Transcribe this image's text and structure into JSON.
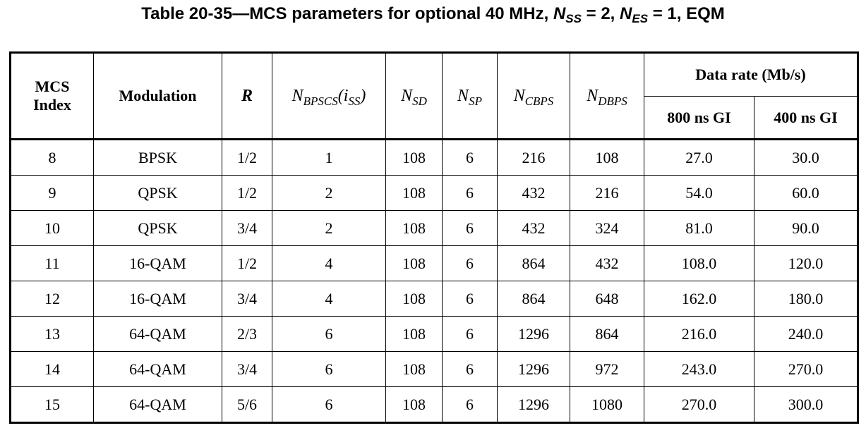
{
  "caption": {
    "prefix": "Table 20-35—MCS parameters for optional 40 MHz, ",
    "nss_n": "N",
    "nss_sub": "SS",
    "nss_val": " = 2, ",
    "nes_n": "N",
    "nes_sub": "ES",
    "nes_val": " = 1, EQM"
  },
  "headers": {
    "mcs_index": "MCS Index",
    "modulation": "Modulation",
    "r": "R",
    "nbpscs_n": "N",
    "nbpscs_sub": "BPSCS",
    "nbpscs_paren_open": "(i",
    "nbpscs_iss_sub": "SS",
    "nbpscs_paren_close": ")",
    "nsd_n": "N",
    "nsd_sub": "SD",
    "nsp_n": "N",
    "nsp_sub": "SP",
    "ncbps_n": "N",
    "ncbps_sub": "CBPS",
    "ndbps_n": "N",
    "ndbps_sub": "DBPS",
    "data_rate": "Data rate (Mb/s)",
    "gi800": "800 ns GI",
    "gi400": "400 ns GI"
  },
  "rows": [
    [
      "8",
      "BPSK",
      "1/2",
      "1",
      "108",
      "6",
      "216",
      "108",
      "27.0",
      "30.0"
    ],
    [
      "9",
      "QPSK",
      "1/2",
      "2",
      "108",
      "6",
      "432",
      "216",
      "54.0",
      "60.0"
    ],
    [
      "10",
      "QPSK",
      "3/4",
      "2",
      "108",
      "6",
      "432",
      "324",
      "81.0",
      "90.0"
    ],
    [
      "11",
      "16-QAM",
      "1/2",
      "4",
      "108",
      "6",
      "864",
      "432",
      "108.0",
      "120.0"
    ],
    [
      "12",
      "16-QAM",
      "3/4",
      "4",
      "108",
      "6",
      "864",
      "648",
      "162.0",
      "180.0"
    ],
    [
      "13",
      "64-QAM",
      "2/3",
      "6",
      "108",
      "6",
      "1296",
      "864",
      "216.0",
      "240.0"
    ],
    [
      "14",
      "64-QAM",
      "3/4",
      "6",
      "108",
      "6",
      "1296",
      "972",
      "243.0",
      "270.0"
    ],
    [
      "15",
      "64-QAM",
      "5/6",
      "6",
      "108",
      "6",
      "1296",
      "1080",
      "270.0",
      "300.0"
    ]
  ]
}
